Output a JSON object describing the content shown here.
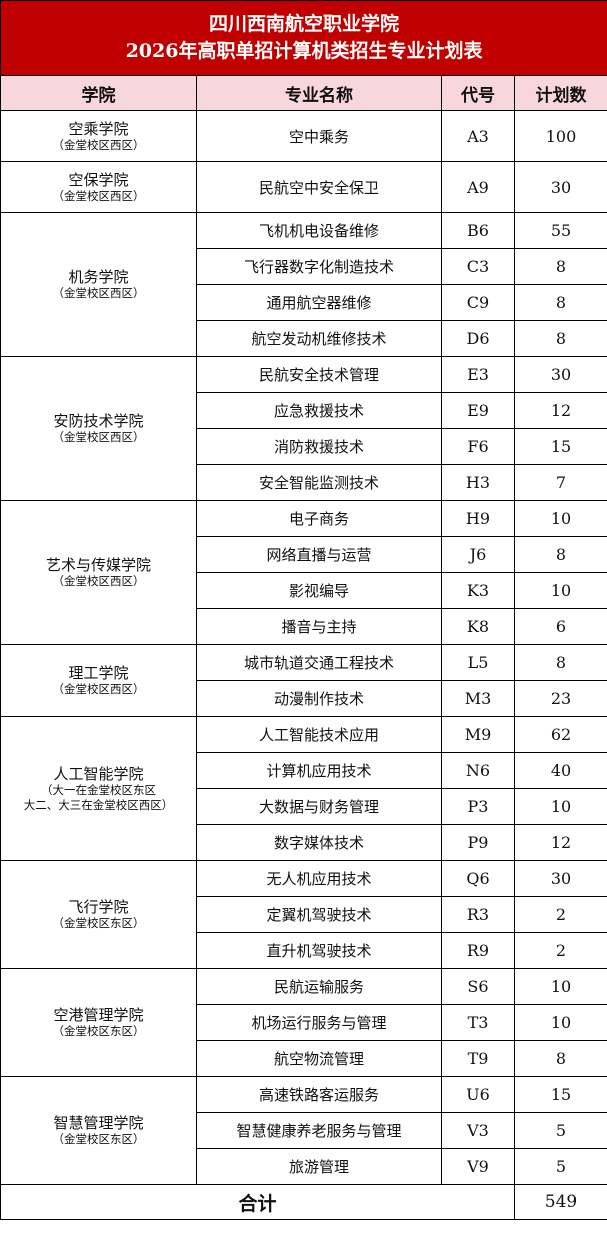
{
  "title": {
    "line1": "四川西南航空职业学院",
    "line2": "2026年高职单招计算机类招生专业计划表"
  },
  "headers": [
    "学院",
    "专业名称",
    "代号",
    "计划数"
  ],
  "colors": {
    "title_bg": "#c00000",
    "header_bg": "#f8d7dc"
  },
  "groups": [
    {
      "college": "空乘学院",
      "campus": "（金堂校区西区）",
      "majors": [
        [
          "空中乘务",
          "A3",
          "100"
        ]
      ]
    },
    {
      "college": "空保学院",
      "campus": "（金堂校区西区）",
      "majors": [
        [
          "民航空中安全保卫",
          "A9",
          "30"
        ]
      ]
    },
    {
      "college": "机务学院",
      "campus": "（金堂校区西区）",
      "majors": [
        [
          "飞机机电设备维修",
          "B6",
          "55"
        ],
        [
          "飞行器数字化制造技术",
          "C3",
          "8"
        ],
        [
          "通用航空器维修",
          "C9",
          "8"
        ],
        [
          "航空发动机维修技术",
          "D6",
          "8"
        ]
      ]
    },
    {
      "college": "安防技术学院",
      "campus": "（金堂校区西区）",
      "majors": [
        [
          "民航安全技术管理",
          "E3",
          "30"
        ],
        [
          "应急救援技术",
          "E9",
          "12"
        ],
        [
          "消防救援技术",
          "F6",
          "15"
        ],
        [
          "安全智能监测技术",
          "H3",
          "7"
        ]
      ]
    },
    {
      "college": "艺术与传媒学院",
      "campus": "（金堂校区西区）",
      "majors": [
        [
          "电子商务",
          "H9",
          "10"
        ],
        [
          "网络直播与运营",
          "J6",
          "8"
        ],
        [
          "影视编导",
          "K3",
          "10"
        ],
        [
          "播音与主持",
          "K8",
          "6"
        ]
      ]
    },
    {
      "college": "理工学院",
      "campus": "（金堂校区西区）",
      "majors": [
        [
          "城市轨道交通工程技术",
          "L5",
          "8"
        ],
        [
          "动漫制作技术",
          "M3",
          "23"
        ]
      ]
    },
    {
      "college": "人工智能学院",
      "campus": "（大一在金堂校区东区",
      "campus2": "大二、大三在金堂校区西区）",
      "majors": [
        [
          "人工智能技术应用",
          "M9",
          "62"
        ],
        [
          "计算机应用技术",
          "N6",
          "40"
        ],
        [
          "大数据与财务管理",
          "P3",
          "10"
        ],
        [
          "数字媒体技术",
          "P9",
          "12"
        ]
      ]
    },
    {
      "college": "飞行学院",
      "campus": "（金堂校区东区）",
      "majors": [
        [
          "无人机应用技术",
          "Q6",
          "30"
        ],
        [
          "定翼机驾驶技术",
          "R3",
          "2"
        ],
        [
          "直升机驾驶技术",
          "R9",
          "2"
        ]
      ]
    },
    {
      "college": "空港管理学院",
      "campus": "（金堂校区东区）",
      "majors": [
        [
          "民航运输服务",
          "S6",
          "10"
        ],
        [
          "机场运行服务与管理",
          "T3",
          "10"
        ],
        [
          "航空物流管理",
          "T9",
          "8"
        ]
      ]
    },
    {
      "college": "智慧管理学院",
      "campus": "（金堂校区东区）",
      "majors": [
        [
          "高速铁路客运服务",
          "U6",
          "15"
        ],
        [
          "智慧健康养老服务与管理",
          "V3",
          "5"
        ],
        [
          "旅游管理",
          "V9",
          "5"
        ]
      ]
    }
  ],
  "total": {
    "label": "合计",
    "value": "549"
  }
}
